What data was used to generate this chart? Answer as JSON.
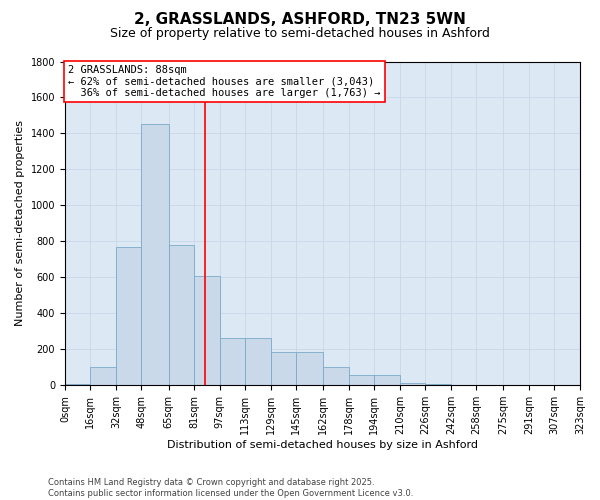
{
  "title": "2, GRASSLANDS, ASHFORD, TN23 5WN",
  "subtitle": "Size of property relative to semi-detached houses in Ashford",
  "xlabel": "Distribution of semi-detached houses by size in Ashford",
  "ylabel": "Number of semi-detached properties",
  "bin_edges": [
    0,
    16,
    32,
    48,
    65,
    81,
    97,
    113,
    129,
    145,
    162,
    178,
    194,
    210,
    226,
    242,
    258,
    275,
    291,
    307,
    323
  ],
  "bin_labels": [
    "0sqm",
    "16sqm",
    "32sqm",
    "48sqm",
    "65sqm",
    "81sqm",
    "97sqm",
    "113sqm",
    "129sqm",
    "145sqm",
    "162sqm",
    "178sqm",
    "194sqm",
    "210sqm",
    "226sqm",
    "242sqm",
    "258sqm",
    "275sqm",
    "291sqm",
    "307sqm",
    "323sqm"
  ],
  "bar_heights": [
    5,
    100,
    770,
    1450,
    780,
    610,
    260,
    260,
    185,
    185,
    100,
    55,
    55,
    10,
    5,
    3,
    2,
    1,
    1,
    0,
    0
  ],
  "bar_color": "#c9d9ea",
  "bar_edge_color": "#7aaac8",
  "property_line_x": 88,
  "property_line_color": "red",
  "annotation_text": "2 GRASSLANDS: 88sqm\n← 62% of semi-detached houses are smaller (3,043)\n  36% of semi-detached houses are larger (1,763) →",
  "annotation_box_color": "white",
  "annotation_box_edge_color": "red",
  "ylim": [
    0,
    1800
  ],
  "yticks": [
    0,
    200,
    400,
    600,
    800,
    1000,
    1200,
    1400,
    1600,
    1800
  ],
  "grid_color": "#c8d8e8",
  "background_color": "#dce9f5",
  "footer_text": "Contains HM Land Registry data © Crown copyright and database right 2025.\nContains public sector information licensed under the Open Government Licence v3.0.",
  "title_fontsize": 11,
  "subtitle_fontsize": 9,
  "label_fontsize": 8,
  "tick_fontsize": 7,
  "annotation_fontsize": 7.5,
  "footer_fontsize": 6
}
